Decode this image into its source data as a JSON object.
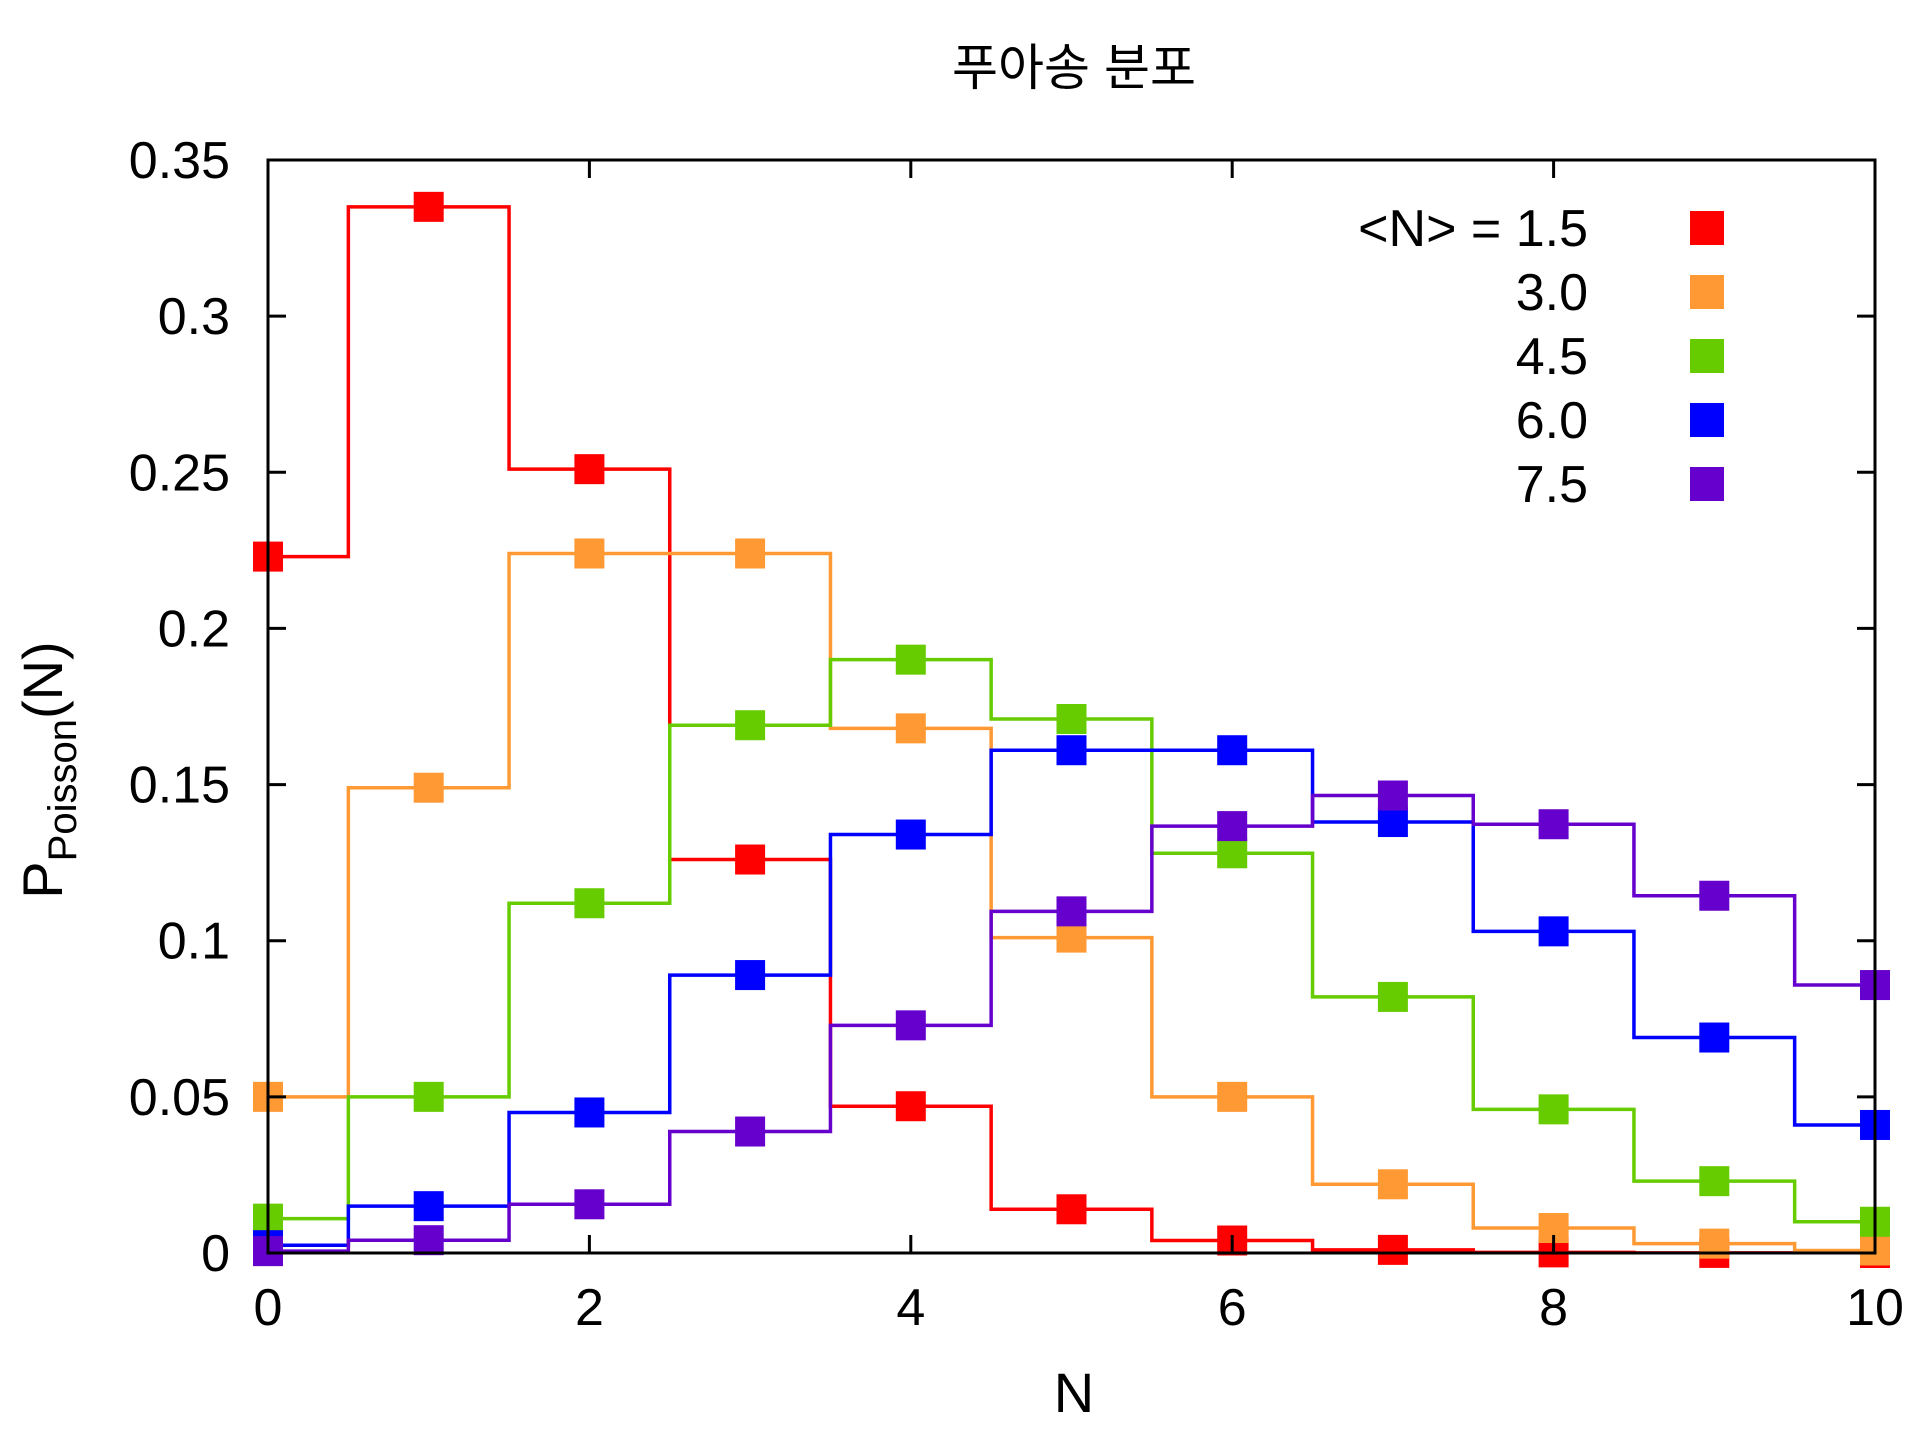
{
  "chart_data": {
    "type": "line",
    "step": "center",
    "title": "푸아송 분포",
    "xlabel": "N",
    "ylabel": {
      "main": "P",
      "sub": "Poisson",
      "suffix": "(N)"
    },
    "xlim": [
      0,
      10
    ],
    "ylim": [
      0,
      0.35
    ],
    "xticks": [
      0,
      2,
      4,
      6,
      8,
      10
    ],
    "xtick_labels": [
      "0",
      "2",
      "4",
      "6",
      "8",
      "10"
    ],
    "yticks": [
      0,
      0.05,
      0.1,
      0.15,
      0.2,
      0.25,
      0.3,
      0.35
    ],
    "ytick_labels": [
      "0",
      "0.05",
      "0.1",
      "0.15",
      "0.2",
      "0.25",
      "0.3",
      "0.35"
    ],
    "grid": false,
    "legend": {
      "position": "top-right",
      "prefix": "<N> ="
    },
    "x": [
      0,
      1,
      2,
      3,
      4,
      5,
      6,
      7,
      8,
      9,
      10
    ],
    "series": [
      {
        "name": "1.5",
        "color": "#ff0000",
        "values": [
          0.223,
          0.335,
          0.251,
          0.126,
          0.047,
          0.014,
          0.004,
          0.001,
          0.0002,
          3e-05,
          4e-06
        ]
      },
      {
        "name": "3.0",
        "color": "#ff9933",
        "values": [
          0.05,
          0.149,
          0.224,
          0.224,
          0.168,
          0.101,
          0.05,
          0.022,
          0.008,
          0.003,
          0.0008
        ]
      },
      {
        "name": "4.5",
        "color": "#66cc00",
        "values": [
          0.011,
          0.05,
          0.112,
          0.169,
          0.19,
          0.171,
          0.128,
          0.082,
          0.046,
          0.023,
          0.01
        ]
      },
      {
        "name": "6.0",
        "color": "#0000ff",
        "values": [
          0.0025,
          0.015,
          0.045,
          0.089,
          0.134,
          0.161,
          0.161,
          0.138,
          0.103,
          0.069,
          0.041
        ]
      },
      {
        "name": "7.5",
        "color": "#6600cc",
        "values": [
          0.0006,
          0.0041,
          0.0156,
          0.0389,
          0.0729,
          0.1094,
          0.1367,
          0.1465,
          0.1373,
          0.1144,
          0.0858
        ]
      }
    ]
  }
}
